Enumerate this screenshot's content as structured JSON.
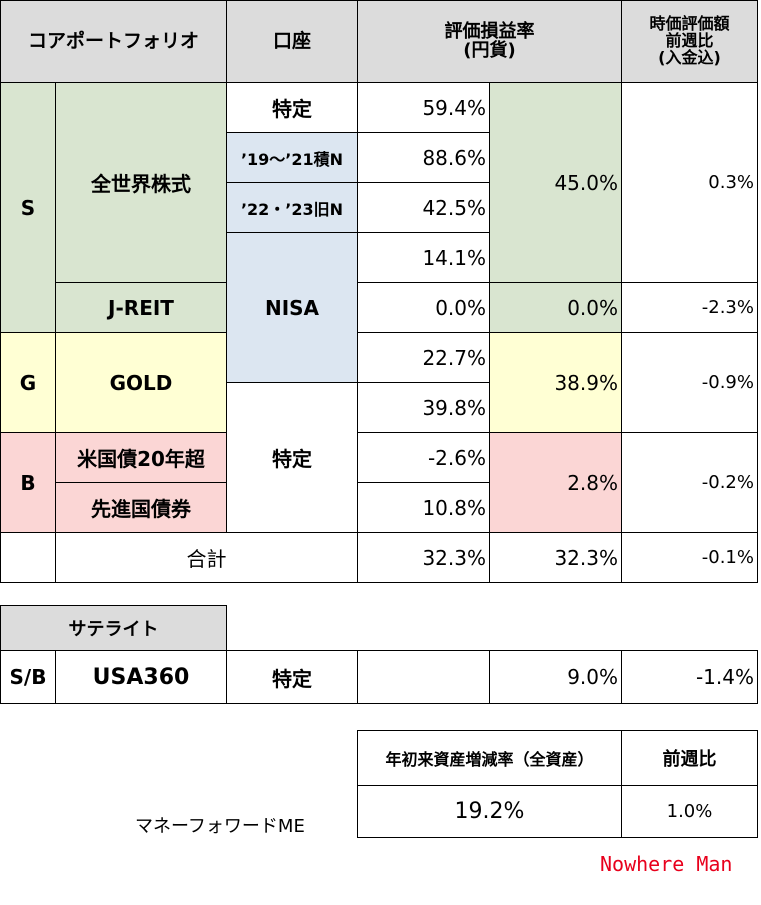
{
  "main_table": {
    "headers": {
      "portfolio": "コアポートフォリオ",
      "account": "口座",
      "return_rate": [
        "評価損益率",
        "(円貨)"
      ],
      "weekly_change": [
        "時価評価額",
        "前週比",
        "(入金込)"
      ]
    },
    "classes": [
      "S",
      "G",
      "B"
    ],
    "assets": [
      "全世界株式",
      "J-REIT",
      "GOLD",
      "米国債20年超",
      "先進国債券"
    ],
    "accounts": [
      "特定",
      "’19〜’21積N",
      "’22・’23旧N",
      "NISA",
      "特定"
    ],
    "holding_returns": [
      "59.4%",
      "88.6%",
      "42.5%",
      "14.1%",
      "0.0%",
      "22.7%",
      "39.8%",
      "-2.6%",
      "10.8%"
    ],
    "asset_returns": [
      "45.0%",
      "0.0%",
      "38.9%",
      "2.8%"
    ],
    "weekly_changes": [
      "0.3%",
      "-2.3%",
      "-0.9%",
      "-0.2%"
    ],
    "total": {
      "label": "合計",
      "holding_return": "32.3%",
      "asset_return": "32.3%",
      "weekly_change": "-0.1%"
    }
  },
  "satellite": {
    "title": "サテライト",
    "class": "S/B",
    "asset": "USA360",
    "account": "特定",
    "return": "9.0%",
    "weekly_change": "-1.4%"
  },
  "summary": {
    "headers": [
      "年初来資産増減率（全資産）",
      "前週比"
    ],
    "values": [
      "19.2%",
      "1.0%"
    ],
    "source": "マネーフォワードME"
  },
  "signature": "Nowhere Man"
}
